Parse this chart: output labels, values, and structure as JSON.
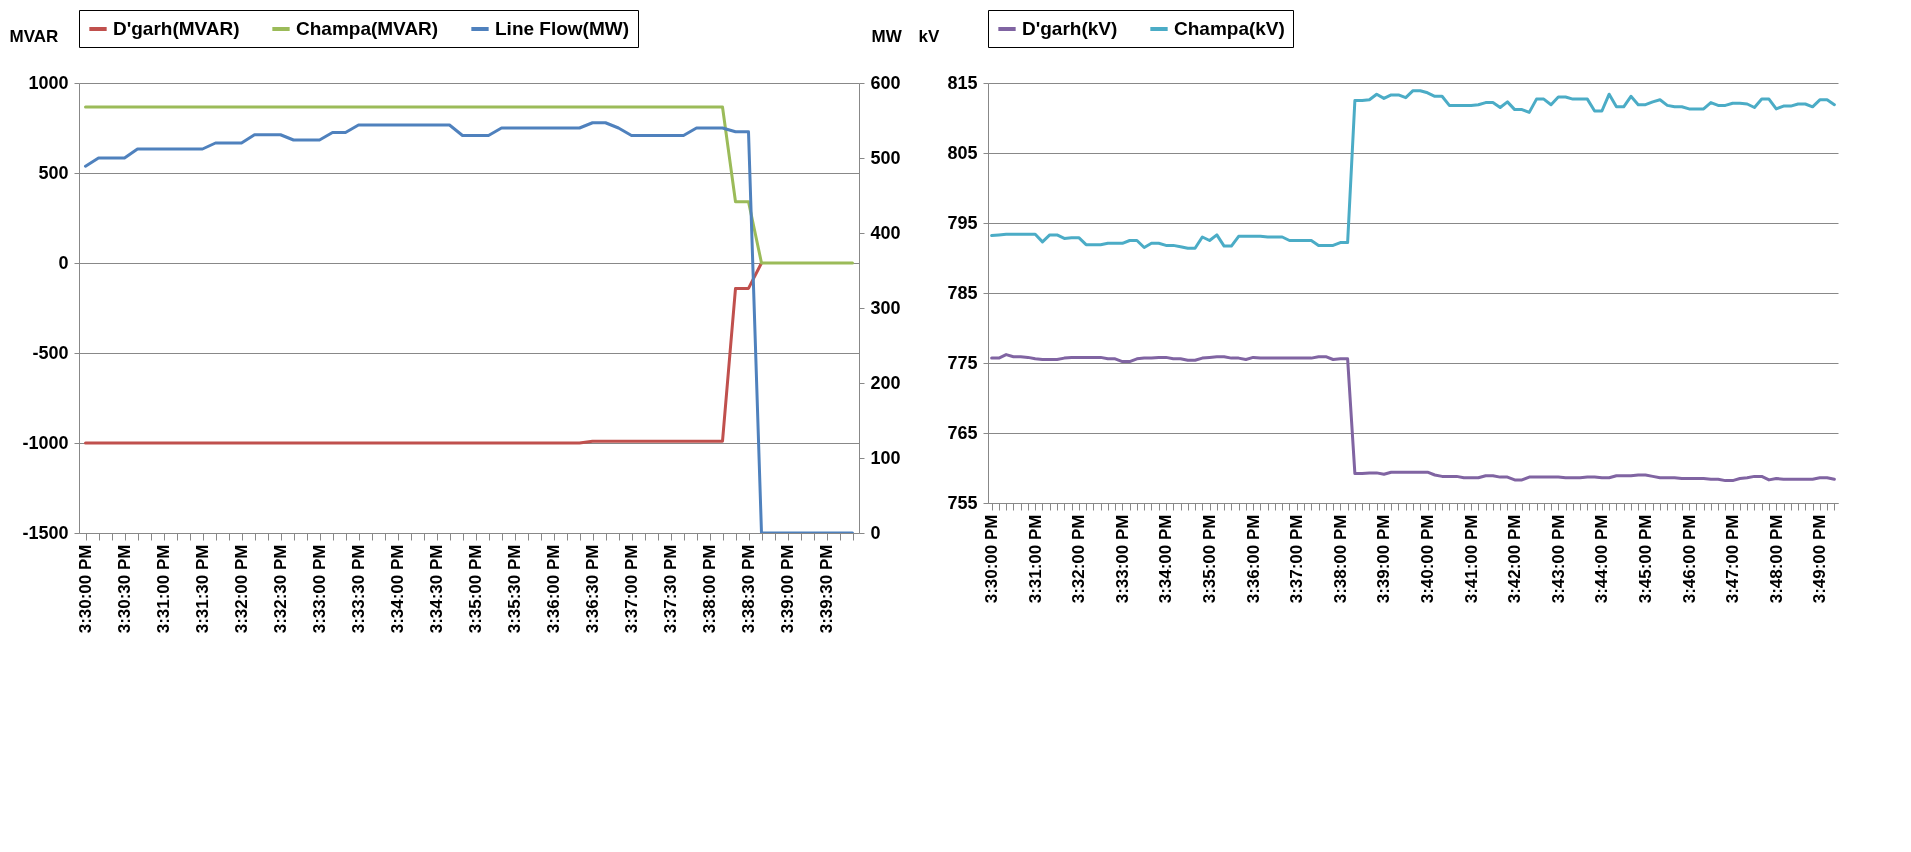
{
  "chart_data": [
    {
      "type": "line",
      "ylabel": "MVAR",
      "y2label": "MW",
      "ylim": [
        -1500,
        1000
      ],
      "yticks": [
        -1500,
        -1000,
        -500,
        0,
        500,
        1000
      ],
      "y2lim": [
        0,
        600
      ],
      "y2ticks": [
        0,
        100,
        200,
        300,
        400,
        500,
        600
      ],
      "grid": "y",
      "legend": "top",
      "categories": [
        "3:30:00 PM",
        null,
        null,
        "3:30:30 PM",
        null,
        null,
        "3:31:00 PM",
        null,
        null,
        "3:31:30 PM",
        null,
        null,
        "3:32:00 PM",
        null,
        null,
        "3:32:30 PM",
        null,
        null,
        "3:33:00 PM",
        null,
        null,
        "3:33:30 PM",
        null,
        null,
        "3:34:00 PM",
        null,
        null,
        "3:34:30 PM",
        null,
        null,
        "3:35:00 PM",
        null,
        null,
        "3:35:30 PM",
        null,
        null,
        "3:36:00 PM",
        null,
        null,
        "3:36:30 PM",
        null,
        null,
        "3:37:00 PM",
        null,
        null,
        "3:37:30 PM",
        null,
        null,
        "3:38:00 PM",
        null,
        null,
        "3:38:30 PM",
        null,
        null,
        "3:39:00 PM",
        null,
        null,
        "3:39:30 PM",
        null,
        null
      ],
      "series": [
        {
          "name": "D'garh(MVAR)",
          "color": "#c0504d",
          "values": [
            -1000,
            -1000,
            -1000,
            -1000,
            -1000,
            -1000,
            -1000,
            -1000,
            -1000,
            -1000,
            -1000,
            -1000,
            -1000,
            -1000,
            -1000,
            -1000,
            -1000,
            -1000,
            -1000,
            -1000,
            -1000,
            -1000,
            -1000,
            -1000,
            -1000,
            -1000,
            -1000,
            -1000,
            -1000,
            -1000,
            -1000,
            -1000,
            -1000,
            -1000,
            -1000,
            -1000,
            -1000,
            -1000,
            -1000,
            -990,
            -990,
            -990,
            -990,
            -990,
            -990,
            -990,
            -990,
            -990,
            -990,
            -990,
            -141,
            -141,
            0,
            null,
            null,
            null,
            null,
            null,
            null,
            null
          ]
        },
        {
          "name": "Champa(MVAR)",
          "color": "#9bbb59",
          "values": [
            867,
            867,
            867,
            867,
            867,
            867,
            867,
            867,
            867,
            867,
            867,
            867,
            867,
            867,
            867,
            867,
            867,
            867,
            867,
            867,
            867,
            867,
            867,
            867,
            867,
            867,
            867,
            867,
            867,
            867,
            867,
            867,
            867,
            867,
            867,
            867,
            867,
            867,
            867,
            867,
            867,
            867,
            867,
            867,
            867,
            867,
            867,
            867,
            867,
            867,
            340,
            340,
            0,
            0,
            0,
            0,
            0,
            0,
            0,
            0
          ]
        },
        {
          "name": "Line Flow(MW)",
          "color": "#4f81bd",
          "axis": "y2",
          "values": [
            489,
            500,
            500,
            500,
            512,
            512,
            512,
            512,
            512,
            512,
            520,
            520,
            520,
            531,
            531,
            531,
            524,
            524,
            524,
            534,
            534,
            544,
            544,
            544,
            544,
            544,
            544,
            544,
            544,
            530,
            530,
            530,
            540,
            540,
            540,
            540,
            540,
            540,
            540,
            547,
            547,
            540,
            530,
            530,
            530,
            530,
            530,
            540,
            540,
            540,
            535,
            535,
            0,
            0,
            0,
            0,
            0,
            0,
            0,
            0
          ]
        }
      ]
    },
    {
      "type": "line",
      "ylabel": "kV",
      "ylim": [
        755,
        815
      ],
      "yticks": [
        755,
        765,
        775,
        785,
        795,
        805,
        815
      ],
      "grid": "y",
      "legend": "top",
      "categories": [
        "3:30:00 PM",
        null,
        null,
        null,
        null,
        null,
        "3:31:00 PM",
        null,
        null,
        null,
        null,
        null,
        "3:32:00 PM",
        null,
        null,
        null,
        null,
        null,
        "3:33:00 PM",
        null,
        null,
        null,
        null,
        null,
        "3:34:00 PM",
        null,
        null,
        null,
        null,
        null,
        "3:35:00 PM",
        null,
        null,
        null,
        null,
        null,
        "3:36:00 PM",
        null,
        null,
        null,
        null,
        null,
        "3:37:00 PM",
        null,
        null,
        null,
        null,
        null,
        "3:38:00 PM",
        null,
        null,
        null,
        null,
        null,
        "3:39:00 PM",
        null,
        null,
        null,
        null,
        null,
        "3:40:00 PM",
        null,
        null,
        null,
        null,
        null,
        "3:41:00 PM",
        null,
        null,
        null,
        null,
        null,
        "3:42:00 PM",
        null,
        null,
        null,
        null,
        null,
        "3:43:00 PM",
        null,
        null,
        null,
        null,
        null,
        "3:44:00 PM",
        null,
        null,
        null,
        null,
        null,
        "3:45:00 PM",
        null,
        null,
        null,
        null,
        null,
        "3:46:00 PM",
        null,
        null,
        null,
        null,
        null,
        "3:47:00 PM",
        null,
        null,
        null,
        null,
        null,
        "3:48:00 PM",
        null,
        null,
        null,
        null,
        null,
        "3:49:00 PM",
        null,
        null
      ],
      "series": [
        {
          "name": "D'garh(kV)",
          "color": "#8064a2",
          "values": [
            775.7,
            775.7,
            776.2,
            775.9,
            775.9,
            775.8,
            775.6,
            775.5,
            775.5,
            775.5,
            775.7,
            775.8,
            775.8,
            775.8,
            775.8,
            775.8,
            775.6,
            775.6,
            775.2,
            775.2,
            775.6,
            775.7,
            775.7,
            775.8,
            775.8,
            775.6,
            775.6,
            775.4,
            775.4,
            775.7,
            775.8,
            775.9,
            775.9,
            775.7,
            775.7,
            775.5,
            775.8,
            775.7,
            775.7,
            775.7,
            775.7,
            775.7,
            775.7,
            775.7,
            775.7,
            775.9,
            775.9,
            775.5,
            775.6,
            775.6,
            759.2,
            759.2,
            759.3,
            759.3,
            759.1,
            759.4,
            759.4,
            759.4,
            759.4,
            759.4,
            759.4,
            759.0,
            758.8,
            758.8,
            758.8,
            758.6,
            758.6,
            758.6,
            758.9,
            758.9,
            758.7,
            758.7,
            758.3,
            758.3,
            758.7,
            758.7,
            758.7,
            758.7,
            758.7,
            758.6,
            758.6,
            758.6,
            758.7,
            758.7,
            758.6,
            758.6,
            758.9,
            758.9,
            758.9,
            759.0,
            759.0,
            758.8,
            758.6,
            758.6,
            758.6,
            758.5,
            758.5,
            758.5,
            758.5,
            758.4,
            758.4,
            758.2,
            758.2,
            758.5,
            758.6,
            758.8,
            758.8,
            758.3,
            758.5,
            758.4,
            758.4,
            758.4,
            758.4,
            758.4,
            758.6,
            758.6,
            758.4
          ]
        },
        {
          "name": "Champa(kV)",
          "color": "#4bacc6",
          "values": [
            793.2,
            793.3,
            793.4,
            793.4,
            793.4,
            793.4,
            793.4,
            792.3,
            793.3,
            793.3,
            792.8,
            792.9,
            792.9,
            791.9,
            791.9,
            791.9,
            792.1,
            792.1,
            792.1,
            792.5,
            792.5,
            791.5,
            792.1,
            792.1,
            791.8,
            791.8,
            791.6,
            791.4,
            791.4,
            793.0,
            792.5,
            793.3,
            791.7,
            791.7,
            793.1,
            793.1,
            793.1,
            793.1,
            793.0,
            793.0,
            793.0,
            792.5,
            792.5,
            792.5,
            792.5,
            791.8,
            791.8,
            791.8,
            792.2,
            792.2,
            812.5,
            812.5,
            812.6,
            813.4,
            812.8,
            813.3,
            813.3,
            812.9,
            813.9,
            813.9,
            813.6,
            813.1,
            813.1,
            811.8,
            811.8,
            811.8,
            811.8,
            811.9,
            812.2,
            812.2,
            811.5,
            812.3,
            811.2,
            811.2,
            810.8,
            812.7,
            812.7,
            811.9,
            813.0,
            813.0,
            812.7,
            812.7,
            812.7,
            811.0,
            811.0,
            813.4,
            811.6,
            811.6,
            813.1,
            811.9,
            811.9,
            812.3,
            812.6,
            811.8,
            811.6,
            811.6,
            811.3,
            811.3,
            811.3,
            812.2,
            811.8,
            811.8,
            812.1,
            812.1,
            812.0,
            811.5,
            812.7,
            812.7,
            811.3,
            811.7,
            811.7,
            812.0,
            812.0,
            811.6,
            812.6,
            812.6,
            811.9
          ]
        }
      ]
    }
  ]
}
